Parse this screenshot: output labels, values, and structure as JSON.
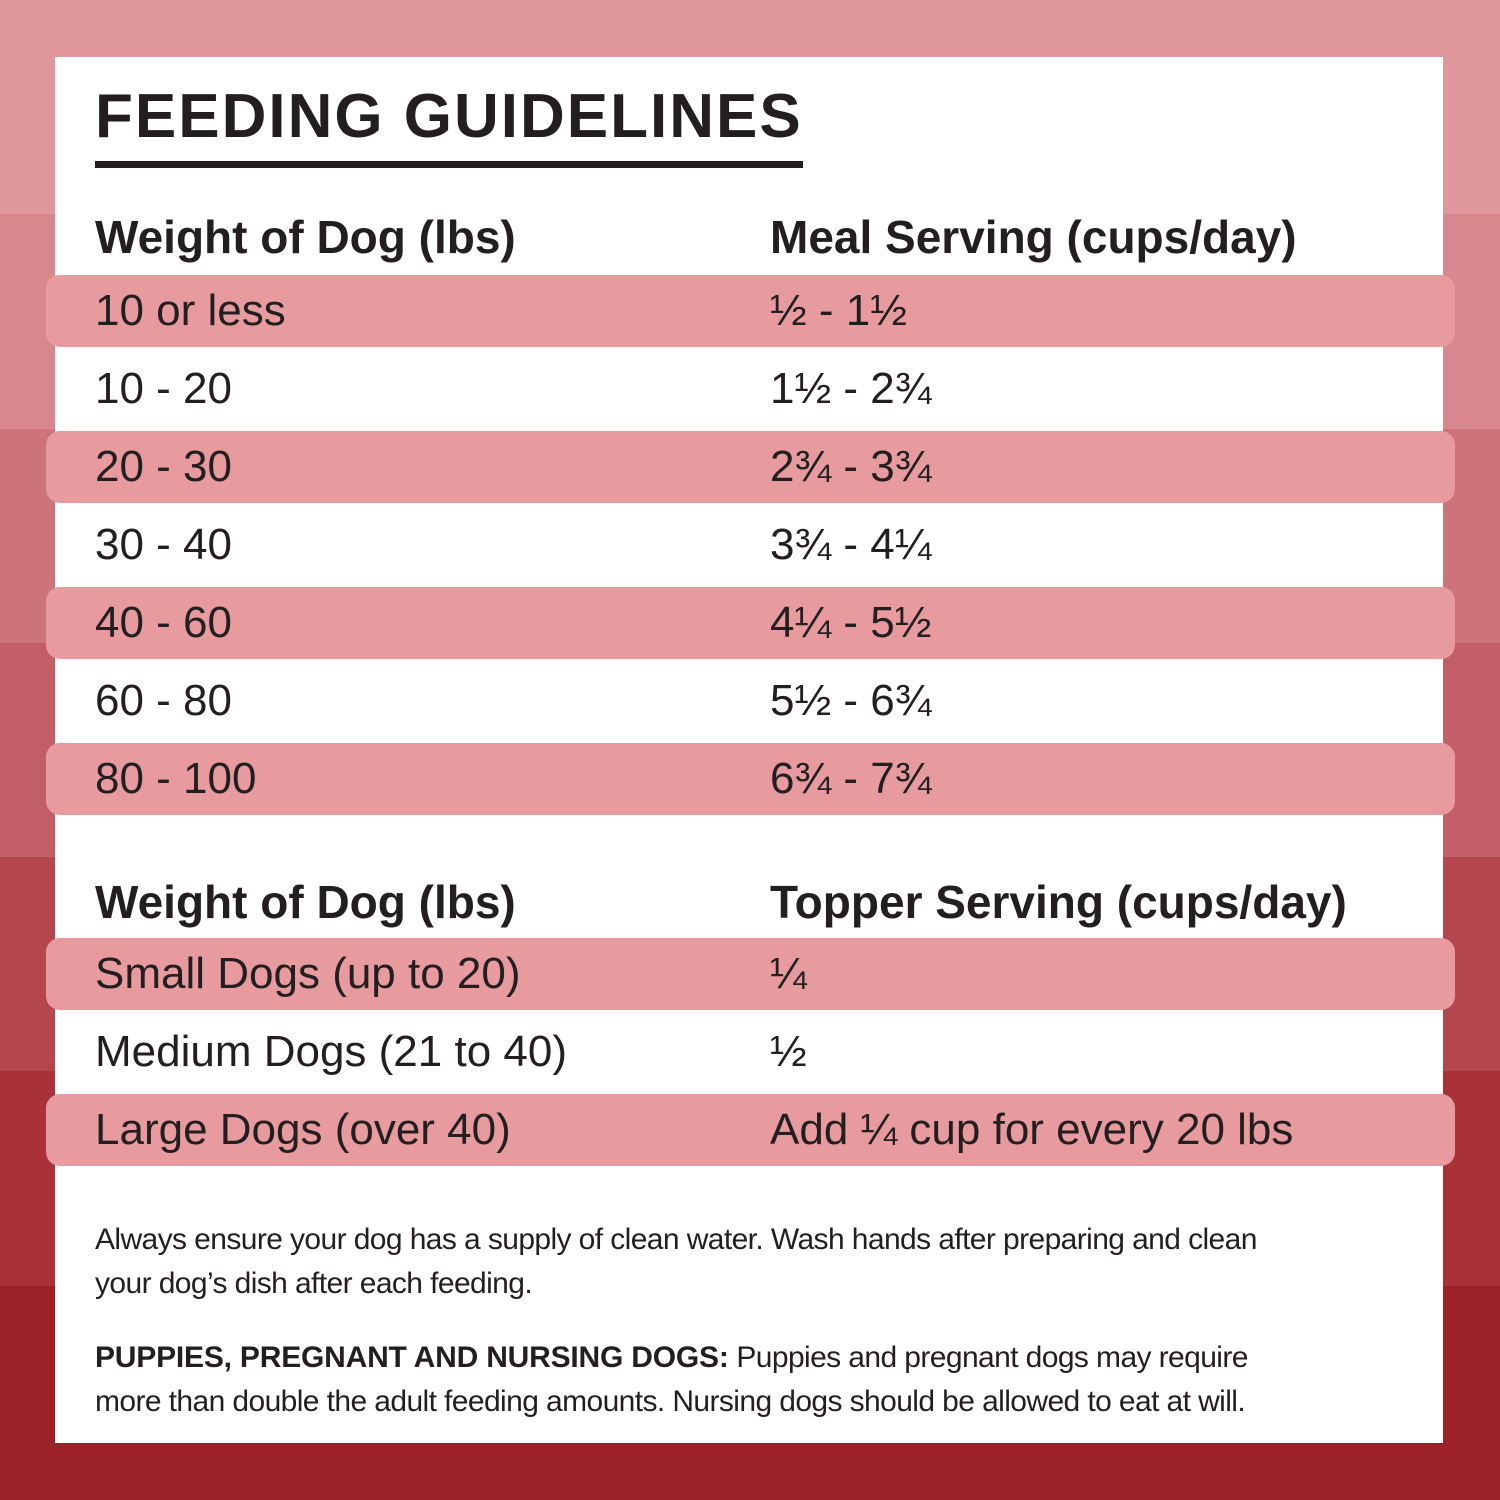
{
  "page": {
    "title": "FEEDING GUIDELINES"
  },
  "meal_table": {
    "col1_header": "Weight of Dog (lbs)",
    "col2_header": "Meal Serving (cups/day)",
    "rows": [
      {
        "weight": "10 or less",
        "serving": "½ - 1½"
      },
      {
        "weight": "10 - 20",
        "serving": "1½ - 2¾"
      },
      {
        "weight": "20 - 30",
        "serving": "2¾ - 3¾"
      },
      {
        "weight": "30 - 40",
        "serving": "3¾ - 4¼"
      },
      {
        "weight": "40 - 60",
        "serving": "4¼ - 5½"
      },
      {
        "weight": "60 - 80",
        "serving": "5½ - 6¾"
      },
      {
        "weight": "80 - 100",
        "serving": "6¾ - 7¾"
      }
    ]
  },
  "topper_table": {
    "col1_header": "Weight of Dog (lbs)",
    "col2_header": "Topper Serving (cups/day)",
    "rows": [
      {
        "label": "Small Dogs (up to 20)",
        "serving": "¼"
      },
      {
        "label": "Medium Dogs (21 to 40)",
        "serving": "½"
      },
      {
        "label": "Large Dogs (over 40)",
        "serving": "Add ¼ cup for every 20 lbs"
      }
    ]
  },
  "notes": {
    "para1_line1": "Always ensure your dog has a supply of clean water. Wash hands after preparing and clean",
    "para1_line2": "your dog’s dish after each feeding.",
    "para2_bold": "PUPPIES, PREGNANT AND NURSING DOGS:",
    "para2_line1_rest": " Puppies and pregnant dogs may require",
    "para2_line2": "more than double the adult feeding amounts. Nursing dogs should be allowed to eat at will."
  },
  "colors": {
    "text": "#231f20",
    "card_background": "#ffffff",
    "row_highlight": "#e79b9f",
    "border_bands": [
      "#e0979b",
      "#d8888d",
      "#cd747a",
      "#c25f66",
      "#b4474e",
      "#a83238",
      "#9b2126"
    ]
  }
}
